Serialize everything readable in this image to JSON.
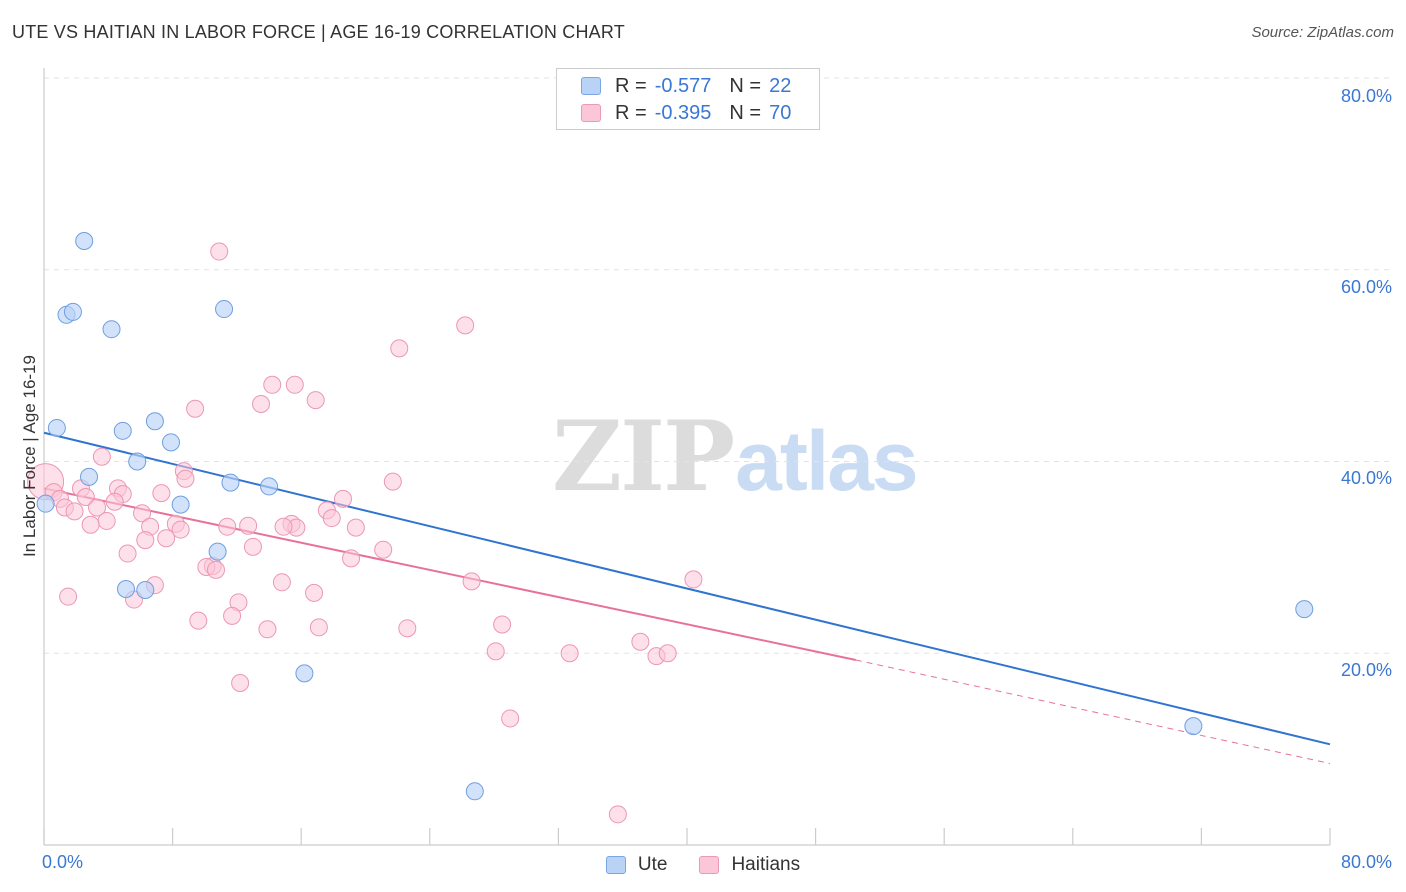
{
  "header": {
    "title": "UTE VS HAITIAN IN LABOR FORCE | AGE 16-19 CORRELATION CHART",
    "source": "Source: ZipAtlas.com"
  },
  "legend": {
    "ute": {
      "r_label": "R =",
      "r_value": "-0.577",
      "n_label": "N =",
      "n_value": "22"
    },
    "haitians": {
      "r_label": "R =",
      "r_value": "-0.395",
      "n_label": "N =",
      "n_value": "70"
    }
  },
  "bottom_legend": {
    "ute": "Ute",
    "haitians": "Haitians"
  },
  "watermark": {
    "zip": "ZIP",
    "atlas": "atlas"
  },
  "axes": {
    "y_label": "In Labor Force | Age 16-19",
    "x_min_label": "0.0%",
    "x_max_label": "80.0%",
    "y_ticks": [
      "20.0%",
      "40.0%",
      "60.0%",
      "80.0%"
    ]
  },
  "colors": {
    "ute_fill": "#b9d3f7",
    "ute_stroke": "#6f9fe0",
    "ute_line": "#2f74d0",
    "haitian_fill": "#fbc6d7",
    "haitian_stroke": "#ec97b4",
    "haitian_line": "#e8719a",
    "grid": "#e3e3e3",
    "axis": "#cccccc"
  },
  "chart_data": {
    "type": "scatter",
    "title": "UTE VS HAITIAN IN LABOR FORCE | AGE 16-19 CORRELATION CHART",
    "xlabel": "",
    "ylabel": "In Labor Force | Age 16-19",
    "xlim": [
      0,
      80
    ],
    "ylim": [
      0,
      80
    ],
    "grid": true,
    "series": [
      {
        "name": "Ute",
        "r": -0.577,
        "n": 22,
        "trend": {
          "x0": 0,
          "y0": 43.0,
          "x1": 80,
          "y1": 10.5
        },
        "points": [
          [
            2.5,
            63.0
          ],
          [
            1.4,
            55.3
          ],
          [
            1.8,
            55.6
          ],
          [
            4.2,
            53.8
          ],
          [
            11.2,
            55.9
          ],
          [
            0.8,
            43.5
          ],
          [
            4.9,
            43.2
          ],
          [
            6.9,
            44.2
          ],
          [
            7.9,
            42.0
          ],
          [
            5.8,
            40.0
          ],
          [
            2.8,
            38.4
          ],
          [
            11.6,
            37.8
          ],
          [
            14.0,
            37.4
          ],
          [
            8.5,
            35.5
          ],
          [
            0.1,
            35.6
          ],
          [
            10.8,
            30.6
          ],
          [
            5.1,
            26.7
          ],
          [
            6.3,
            26.6
          ],
          [
            16.2,
            17.9
          ],
          [
            26.8,
            5.6
          ],
          [
            78.4,
            24.6
          ],
          [
            71.5,
            12.4
          ]
        ]
      },
      {
        "name": "Haitians",
        "r": -0.395,
        "n": 70,
        "trend": {
          "x0": 0,
          "y0": 37.2,
          "x1": 50.5,
          "y1": 19.3,
          "dashed_to_x": 80,
          "dashed_to_y": 8.5
        },
        "points": [
          [
            10.9,
            61.9
          ],
          [
            26.2,
            54.2
          ],
          [
            22.1,
            51.8
          ],
          [
            14.2,
            48.0
          ],
          [
            15.6,
            48.0
          ],
          [
            16.9,
            46.4
          ],
          [
            13.5,
            46.0
          ],
          [
            9.4,
            45.5
          ],
          [
            3.6,
            40.5
          ],
          [
            8.7,
            39.0
          ],
          [
            21.7,
            37.9
          ],
          [
            8.8,
            38.2
          ],
          [
            0.1,
            37.9
          ],
          [
            0.6,
            36.8
          ],
          [
            2.3,
            37.2
          ],
          [
            4.6,
            37.2
          ],
          [
            7.3,
            36.7
          ],
          [
            4.9,
            36.6
          ],
          [
            1.0,
            36.1
          ],
          [
            2.6,
            36.3
          ],
          [
            4.4,
            35.8
          ],
          [
            18.6,
            36.1
          ],
          [
            1.3,
            35.2
          ],
          [
            3.3,
            35.2
          ],
          [
            1.9,
            34.8
          ],
          [
            6.1,
            34.6
          ],
          [
            17.6,
            34.9
          ],
          [
            17.9,
            34.1
          ],
          [
            3.9,
            33.8
          ],
          [
            2.9,
            33.4
          ],
          [
            11.4,
            33.2
          ],
          [
            6.6,
            33.2
          ],
          [
            8.2,
            33.5
          ],
          [
            8.5,
            32.9
          ],
          [
            12.7,
            33.3
          ],
          [
            15.4,
            33.5
          ],
          [
            15.7,
            33.1
          ],
          [
            14.9,
            33.2
          ],
          [
            19.4,
            33.1
          ],
          [
            7.6,
            32.0
          ],
          [
            6.3,
            31.8
          ],
          [
            13.0,
            31.1
          ],
          [
            21.1,
            30.8
          ],
          [
            5.2,
            30.4
          ],
          [
            19.1,
            29.9
          ],
          [
            10.5,
            29.1
          ],
          [
            10.1,
            29.0
          ],
          [
            10.7,
            28.7
          ],
          [
            14.8,
            27.4
          ],
          [
            26.6,
            27.5
          ],
          [
            40.4,
            27.7
          ],
          [
            6.9,
            27.1
          ],
          [
            16.8,
            26.3
          ],
          [
            1.5,
            25.9
          ],
          [
            5.6,
            25.6
          ],
          [
            12.1,
            25.3
          ],
          [
            11.7,
            23.9
          ],
          [
            9.6,
            23.4
          ],
          [
            28.5,
            23.0
          ],
          [
            17.1,
            22.7
          ],
          [
            13.9,
            22.5
          ],
          [
            22.6,
            22.6
          ],
          [
            37.1,
            21.2
          ],
          [
            28.1,
            20.2
          ],
          [
            32.7,
            20.0
          ],
          [
            38.1,
            19.7
          ],
          [
            38.8,
            20.0
          ],
          [
            12.2,
            16.9
          ],
          [
            29.0,
            13.2
          ],
          [
            35.7,
            3.2
          ]
        ]
      }
    ]
  }
}
